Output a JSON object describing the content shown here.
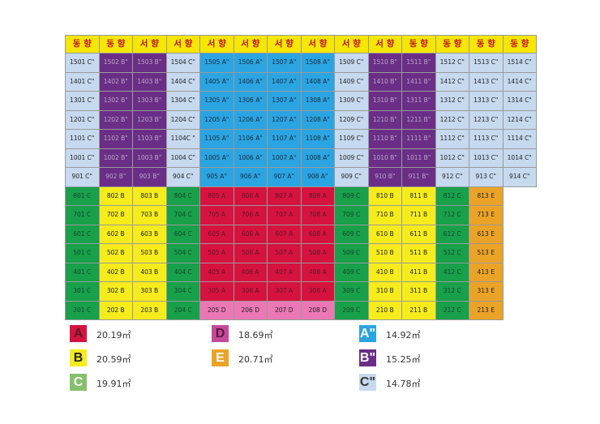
{
  "headers": [
    "동 향",
    "동 향",
    "서 향",
    "서 향",
    "서 향",
    "서 향",
    "서 향",
    "서 향",
    "서 향",
    "서 향",
    "동 향",
    "동 향",
    "동 향",
    "동 향"
  ],
  "rows": [
    [
      [
        "1501 C\"",
        "Cp"
      ],
      [
        "1502 B\"",
        "Bp"
      ],
      [
        "1503 B\"",
        "Bp"
      ],
      [
        "1504 C\"",
        "Cp"
      ],
      [
        "1505 A\"",
        "Ap"
      ],
      [
        "1506 A\"",
        "Ap"
      ],
      [
        "1507 A\"",
        "Ap"
      ],
      [
        "1508 A\"",
        "Ap"
      ],
      [
        "1509 C\"",
        "Cp"
      ],
      [
        "1510 B\"",
        "Bp"
      ],
      [
        "1511 B\"",
        "Bp"
      ],
      [
        "1512 C\"",
        "Cp"
      ],
      [
        "1513 C\"",
        "Cp"
      ],
      [
        "1514 C\"",
        "Cp"
      ]
    ],
    [
      [
        "1401 C\"",
        "Cp"
      ],
      [
        "1402 B\"",
        "Bp"
      ],
      [
        "1403 B\"",
        "Bp"
      ],
      [
        "1404 C\"",
        "Cp"
      ],
      [
        "1405 A\"",
        "Ap"
      ],
      [
        "1406 A\"",
        "Ap"
      ],
      [
        "1407 A\"",
        "Ap"
      ],
      [
        "1408 A\"",
        "Ap"
      ],
      [
        "1409 C\"",
        "Cp"
      ],
      [
        "1410 B\"",
        "Bp"
      ],
      [
        "1411 B\"",
        "Bp"
      ],
      [
        "1412 C\"",
        "Cp"
      ],
      [
        "1413 C\"",
        "Cp"
      ],
      [
        "1414 C\"",
        "Cp"
      ]
    ],
    [
      [
        "1301 C\"",
        "Cp"
      ],
      [
        "1302 B\"",
        "Bp"
      ],
      [
        "1303 B\"",
        "Bp"
      ],
      [
        "1304 C\"",
        "Cp"
      ],
      [
        "1305  A\"",
        "Ap"
      ],
      [
        "1306 A\"",
        "Ap"
      ],
      [
        "1307 A\"",
        "Ap"
      ],
      [
        "1308 A\"",
        "Ap"
      ],
      [
        "1309 C\"",
        "Cp"
      ],
      [
        "1310 B\"",
        "Bp"
      ],
      [
        "1311 B\"",
        "Bp"
      ],
      [
        "1312 C\"",
        "Cp"
      ],
      [
        "1313 C\"",
        "Cp"
      ],
      [
        "1314 C\"",
        "Cp"
      ]
    ],
    [
      [
        "1201 C\"",
        "Cp"
      ],
      [
        "1202 B\"",
        "Bp"
      ],
      [
        "1203 B\"",
        "Bp"
      ],
      [
        "1204 C\"",
        "Cp"
      ],
      [
        "1205 A\"",
        "Ap"
      ],
      [
        "1206 A\"",
        "Ap"
      ],
      [
        "1207 A\"",
        "Ap"
      ],
      [
        "1208 A\"",
        "Ap"
      ],
      [
        "1209 C\"",
        "Cp"
      ],
      [
        "1210 B\"",
        "Bp"
      ],
      [
        "1211 B\"",
        "Bp"
      ],
      [
        "1212 C\"",
        "Cp"
      ],
      [
        "1213 C\"",
        "Cp"
      ],
      [
        "1214 C\"",
        "Cp"
      ]
    ],
    [
      [
        "1101 C\"",
        "Cp"
      ],
      [
        "1102 B\"",
        "Bp"
      ],
      [
        "1103 B\"",
        "Bp"
      ],
      [
        "1104C \"",
        "Cp"
      ],
      [
        "1105 A\"",
        "Ap"
      ],
      [
        "1106 A\"",
        "Ap"
      ],
      [
        "1107 A\"",
        "Ap"
      ],
      [
        "1108 A\"",
        "Ap"
      ],
      [
        "1109 C\"",
        "Cp"
      ],
      [
        "1110 B\"",
        "Bp"
      ],
      [
        "1111 B\"",
        "Bp"
      ],
      [
        "1112 C\"",
        "Cp"
      ],
      [
        "1113 C\"",
        "Cp"
      ],
      [
        "1114 C\"",
        "Cp"
      ]
    ],
    [
      [
        "1001 C\"",
        "Cp"
      ],
      [
        "1002 B\"",
        "Bp"
      ],
      [
        "1003 B\"",
        "Bp"
      ],
      [
        "1004 C\"",
        "Cp"
      ],
      [
        "1005 A\"",
        "Ap"
      ],
      [
        "1006 A\"",
        "Ap"
      ],
      [
        "1007 A\"",
        "Ap"
      ],
      [
        "1008 A\"",
        "Ap"
      ],
      [
        "1009 C\"",
        "Cp"
      ],
      [
        "1010 B\"",
        "Bp"
      ],
      [
        "1011 B\"",
        "Bp"
      ],
      [
        "1012 C\"",
        "Cp"
      ],
      [
        "1013 C\"",
        "Cp"
      ],
      [
        "1014 C\"",
        "Cp"
      ]
    ],
    [
      [
        "901 C\"",
        "Cp"
      ],
      [
        "902 B\"",
        "Bp"
      ],
      [
        "903 B\"",
        "Bp"
      ],
      [
        "904 C\"",
        "Cp"
      ],
      [
        "905 A\"",
        "Ap"
      ],
      [
        "906 A\"",
        "Ap"
      ],
      [
        "907 A\"",
        "Ap"
      ],
      [
        "908 A\"",
        "Ap"
      ],
      [
        "909 C\"",
        "Cp"
      ],
      [
        "910 B\"",
        "Bp"
      ],
      [
        "911 B\"",
        "Bp"
      ],
      [
        "912 C\"",
        "Cp"
      ],
      [
        "913 C\"",
        "Cp"
      ],
      [
        "914 C\"",
        "Cp"
      ]
    ],
    [
      [
        "801 C",
        "C"
      ],
      [
        "802 B",
        "B"
      ],
      [
        "803 B",
        "B"
      ],
      [
        "804 C",
        "C"
      ],
      [
        "805 A",
        "A"
      ],
      [
        "806 A",
        "A"
      ],
      [
        "807 A",
        "A"
      ],
      [
        "808 A",
        "A"
      ],
      [
        "809 C",
        "C"
      ],
      [
        "810 B",
        "B"
      ],
      [
        "811 B",
        "B"
      ],
      [
        "812 C",
        "C"
      ],
      [
        "813 E",
        "E"
      ],
      [
        "",
        ""
      ]
    ],
    [
      [
        "701 C",
        "C"
      ],
      [
        "702 B",
        "B"
      ],
      [
        "703 B",
        "B"
      ],
      [
        "704 C",
        "C"
      ],
      [
        "705 A",
        "A"
      ],
      [
        "706 A",
        "A"
      ],
      [
        "707 A",
        "A"
      ],
      [
        "708 A",
        "A"
      ],
      [
        "709 C",
        "C"
      ],
      [
        "710 B",
        "B"
      ],
      [
        "711 B",
        "B"
      ],
      [
        "712 C",
        "C"
      ],
      [
        "713 E",
        "E"
      ],
      [
        "",
        ""
      ]
    ],
    [
      [
        "601 C",
        "C"
      ],
      [
        "602 B",
        "B"
      ],
      [
        "603 B",
        "B"
      ],
      [
        "604 C",
        "C"
      ],
      [
        "605 A",
        "A"
      ],
      [
        "606 A",
        "A"
      ],
      [
        "607 A",
        "A"
      ],
      [
        "608 A",
        "A"
      ],
      [
        "609 C",
        "C"
      ],
      [
        "610 B",
        "B"
      ],
      [
        "611 B",
        "B"
      ],
      [
        "612 C",
        "C"
      ],
      [
        "613 E",
        "E"
      ],
      [
        "",
        ""
      ]
    ],
    [
      [
        "501 C",
        "C"
      ],
      [
        "502 B",
        "B"
      ],
      [
        "503 B",
        "B"
      ],
      [
        "504 C",
        "C"
      ],
      [
        "505 A",
        "A"
      ],
      [
        "506 A",
        "A"
      ],
      [
        "507 A",
        "A"
      ],
      [
        "508 A",
        "A"
      ],
      [
        "509 C",
        "C"
      ],
      [
        "510 B",
        "B"
      ],
      [
        "511 B",
        "B"
      ],
      [
        "512 C",
        "C"
      ],
      [
        "513 E",
        "E"
      ],
      [
        "",
        ""
      ]
    ],
    [
      [
        "401 C",
        "C"
      ],
      [
        "402 B",
        "B"
      ],
      [
        "403 B",
        "B"
      ],
      [
        "404 C",
        "C"
      ],
      [
        "405 A",
        "A"
      ],
      [
        "406 A",
        "A"
      ],
      [
        "407 A",
        "A"
      ],
      [
        "408 A",
        "A"
      ],
      [
        "409 C",
        "C"
      ],
      [
        "410 B",
        "B"
      ],
      [
        "411 B",
        "B"
      ],
      [
        "412 C",
        "C"
      ],
      [
        "413 E",
        "E"
      ],
      [
        "",
        ""
      ]
    ],
    [
      [
        "301 C",
        "C"
      ],
      [
        "302 B",
        "B"
      ],
      [
        "303 B",
        "B"
      ],
      [
        "304 C",
        "C"
      ],
      [
        "305 A",
        "A"
      ],
      [
        "306 A",
        "A"
      ],
      [
        "307 A",
        "A"
      ],
      [
        "308 A",
        "A"
      ],
      [
        "309 C",
        "C"
      ],
      [
        "310 B",
        "B"
      ],
      [
        "311 B",
        "B"
      ],
      [
        "312 C",
        "C"
      ],
      [
        "313 E",
        "E"
      ],
      [
        "",
        ""
      ]
    ],
    [
      [
        "201 C",
        "C"
      ],
      [
        "202 B",
        "B"
      ],
      [
        "203 B",
        "B"
      ],
      [
        "204 C",
        "C"
      ],
      [
        "205 D",
        "D"
      ],
      [
        "206 D",
        "D"
      ],
      [
        "207 D",
        "D"
      ],
      [
        "208 D",
        "D"
      ],
      [
        "209 C",
        "C"
      ],
      [
        "210 B",
        "B"
      ],
      [
        "211 B",
        "B"
      ],
      [
        "212 C",
        "C"
      ],
      [
        "213 E",
        "E"
      ],
      [
        "",
        ""
      ]
    ]
  ],
  "legend": [
    {
      "type": "A",
      "label": "A",
      "area": "20.19㎡",
      "color": "#d6123f",
      "text_color": "#5a1a24"
    },
    {
      "type": "B",
      "label": "B",
      "area": "20.59㎡",
      "color": "#f6ec1c",
      "text_color": "#222222"
    },
    {
      "type": "C",
      "label": "C",
      "area": "19.91㎡",
      "color": "#86c06b",
      "text_color": "#ffffff"
    },
    {
      "type": "D",
      "label": "D",
      "area": "18.69㎡",
      "color": "#c5499b",
      "text_color": "#5a1a3a"
    },
    {
      "type": "E",
      "label": "E",
      "area": "20.71㎡",
      "color": "#eba327",
      "text_color": "#ffffff"
    },
    {
      "type": "Ap",
      "label": "A\"",
      "area": "14.92㎡",
      "color": "#2ba4e2",
      "text_color": "#ffffff"
    },
    {
      "type": "Bp",
      "label": "B\"",
      "area": "15.25㎡",
      "color": "#6a2e86",
      "text_color": "#ffffff"
    },
    {
      "type": "Cp",
      "label": "C\"",
      "area": "14.78㎡",
      "color": "#c6d9ef",
      "text_color": "#333333"
    }
  ]
}
